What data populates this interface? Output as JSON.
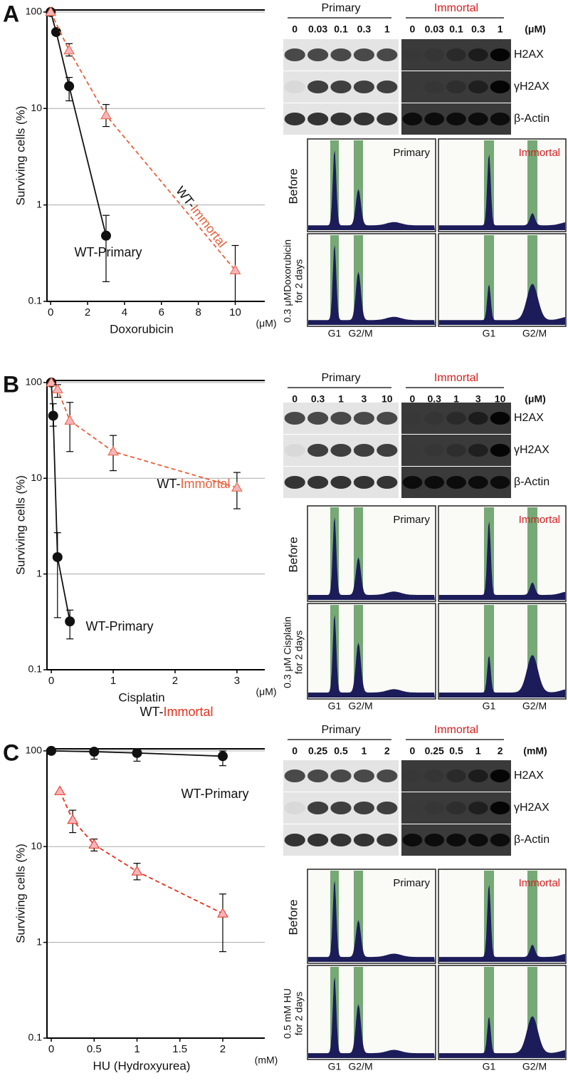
{
  "chart_data": [
    {
      "panel": "A",
      "type": "line",
      "log_y": true,
      "grid": true,
      "ylabel": "Surviving cells (%)",
      "xlabel": "Doxorubicin",
      "x_unit": "(μM)",
      "xlim": [
        -0.2,
        11.6
      ],
      "xticks": [
        0,
        2,
        4,
        6,
        8,
        10
      ],
      "ylim": [
        0.1,
        105
      ],
      "yticks": [
        0.1,
        1,
        10,
        100
      ],
      "series": [
        {
          "name": "WT-Primary",
          "color": "#111111",
          "line_style": "solid",
          "marker": "circle",
          "x": [
            0,
            0.3,
            1,
            3
          ],
          "values": [
            100,
            62,
            17,
            0.48
          ],
          "err_low": [
            null,
            null,
            12,
            0.16
          ],
          "err_high": [
            null,
            null,
            21,
            0.78
          ]
        },
        {
          "name": "WT-Immortal",
          "color": "#e8603c",
          "line_style": "dashed",
          "marker": "triangle",
          "x": [
            0,
            1,
            3,
            10
          ],
          "values": [
            100,
            40,
            8.5,
            0.21
          ],
          "err_low": [
            null,
            35,
            6.5,
            0.1
          ],
          "err_high": [
            null,
            47,
            11,
            0.38
          ]
        }
      ],
      "blot": {
        "groups": [
          "Primary",
          "Immortal"
        ],
        "doses": [
          "0",
          "0.03",
          "0.1",
          "0.3",
          "1"
        ],
        "unit": "(μM)",
        "proteins": [
          "H2AX",
          "γH2AX",
          "β-Actin"
        ]
      },
      "facs": {
        "rows": [
          [
            "Before"
          ],
          [
            "0.3 μMDoxorubicin",
            "for 2 days"
          ]
        ],
        "groups": [
          "Primary",
          "Immortal"
        ],
        "peaks": [
          "G1",
          "G2/M"
        ]
      }
    },
    {
      "panel": "B",
      "type": "line",
      "log_y": true,
      "grid": true,
      "ylabel": "Surviving cells (%)",
      "xlabel": "Cisplatin",
      "x_unit": "(μM)",
      "xlim": [
        -0.07,
        3.45
      ],
      "xticks": [
        0,
        1,
        2,
        3
      ],
      "ylim": [
        0.1,
        105
      ],
      "yticks": [
        0.1,
        1,
        10,
        100
      ],
      "series": [
        {
          "name": "WT-Primary",
          "color": "#111111",
          "line_style": "solid",
          "marker": "circle",
          "x": [
            0,
            0.03,
            0.1,
            0.3
          ],
          "values": [
            100,
            45,
            1.5,
            0.32
          ],
          "err_low": [
            null,
            35,
            0.35,
            0.21
          ],
          "err_high": [
            null,
            60,
            2.7,
            0.42
          ]
        },
        {
          "name": "WT-Immortal",
          "color": "#e8603c",
          "line_style": "dashed",
          "marker": "triangle",
          "x": [
            0,
            0.1,
            0.3,
            1,
            3
          ],
          "values": [
            100,
            85,
            40,
            19,
            8
          ],
          "err_low": [
            null,
            70,
            19,
            12,
            4.8
          ],
          "err_high": [
            null,
            95,
            62,
            28,
            11.5
          ]
        }
      ],
      "blot": {
        "groups": [
          "Primary",
          "Immortal"
        ],
        "doses": [
          "0",
          "0.3",
          "1",
          "3",
          "10"
        ],
        "unit": "(μM)",
        "proteins": [
          "H2AX",
          "γH2AX",
          "β-Actin"
        ]
      },
      "facs": {
        "rows": [
          [
            "Before"
          ],
          [
            "0.3 μM Cisplatin",
            "for 2 days"
          ]
        ],
        "groups": [
          "Primary",
          "Immortal"
        ],
        "peaks": [
          "G1",
          "G2/M"
        ]
      }
    },
    {
      "panel": "C",
      "type": "line",
      "log_y": true,
      "grid": true,
      "ylabel": "Surviving cells (%)",
      "xlabel": "HU (Hydroxyurea)",
      "x_unit": "(mM)",
      "xlim": [
        -0.05,
        2.49
      ],
      "xticks": [
        0,
        0.5,
        1,
        1.5,
        2
      ],
      "ylim": [
        0.1,
        105
      ],
      "yticks": [
        0.1,
        1,
        10,
        100
      ],
      "series": [
        {
          "name": "WT-Primary",
          "color": "#111111",
          "line_style": "solid",
          "marker": "circle",
          "x": [
            0,
            0.5,
            1,
            2
          ],
          "values": [
            100,
            98,
            95,
            88
          ],
          "err_low": [
            null,
            82,
            78,
            70
          ],
          "err_high": [
            null,
            null,
            null,
            100
          ]
        },
        {
          "name": "WT-Immortal",
          "color": "#e8301c",
          "line_style": "dashed",
          "marker": "triangle",
          "x": [
            0.1,
            0.25,
            0.5,
            1,
            2
          ],
          "values": [
            38,
            19,
            10.5,
            5.5,
            2
          ],
          "err_low": [
            null,
            14,
            9,
            4.5,
            0.8
          ],
          "err_high": [
            null,
            24,
            12,
            6.7,
            3.2
          ]
        }
      ],
      "blot": {
        "groups": [
          "Primary",
          "Immortal"
        ],
        "doses": [
          "0",
          "0.25",
          "0.5",
          "1",
          "2"
        ],
        "unit": "(mM)",
        "proteins": [
          "H2AX",
          "γH2AX",
          "β-Actin"
        ]
      },
      "facs": {
        "rows": [
          [
            "Before"
          ],
          [
            "0.5 mM HU",
            "for 2 days"
          ]
        ],
        "groups": [
          "Primary",
          "Immortal"
        ],
        "peaks": [
          "G1",
          "G2/M"
        ]
      }
    }
  ]
}
